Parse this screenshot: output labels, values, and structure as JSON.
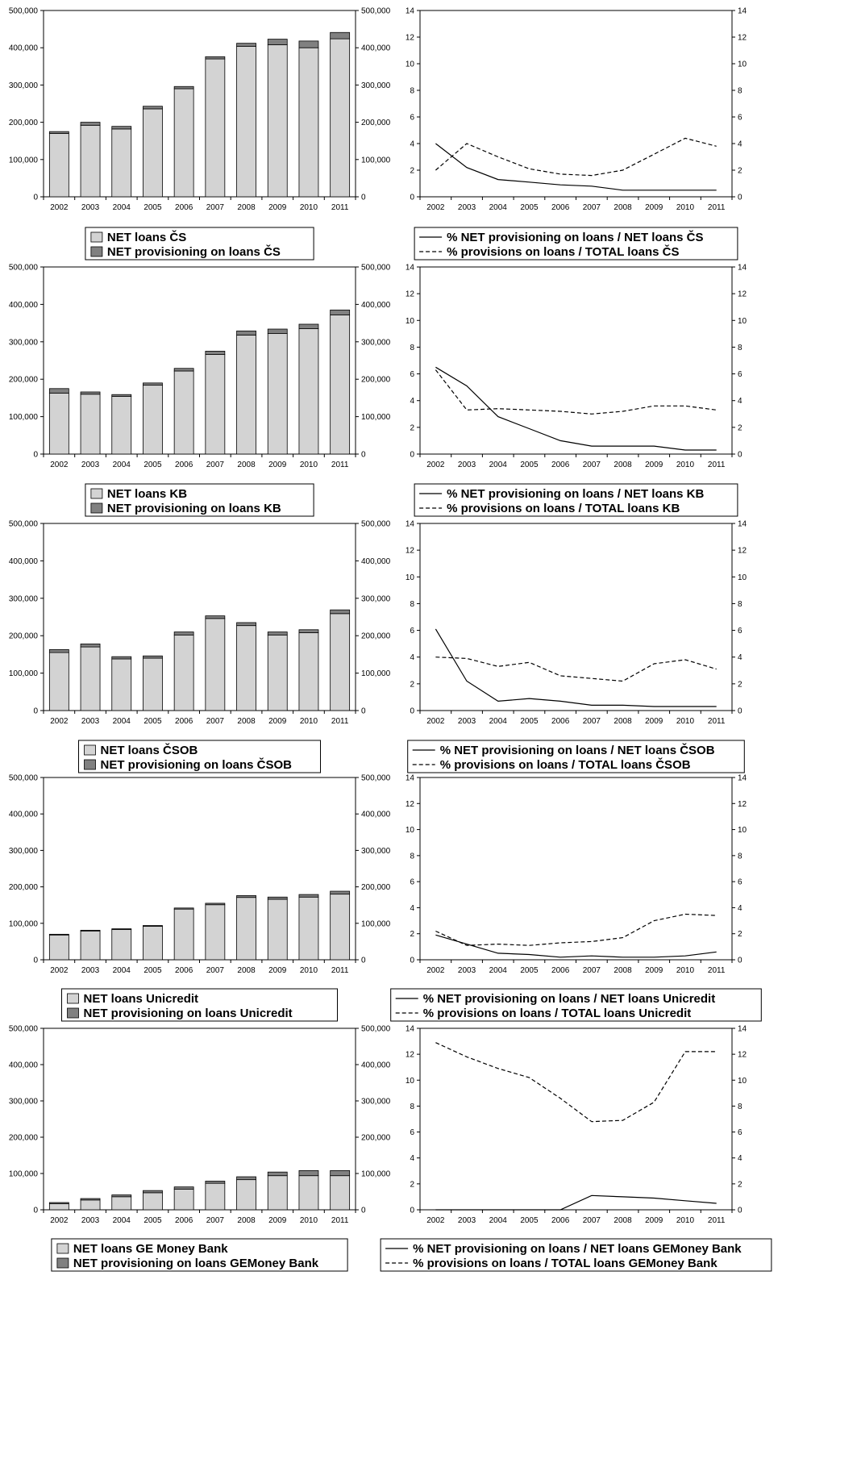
{
  "colors": {
    "loans": "#d3d3d3",
    "provisioning": "#808080",
    "axis": "#000000",
    "background": "#ffffff"
  },
  "years": [
    "2002",
    "2003",
    "2004",
    "2005",
    "2006",
    "2007",
    "2008",
    "2009",
    "2010",
    "2011"
  ],
  "bar_y_ticks": [
    "0",
    "100,000",
    "200,000",
    "300,000",
    "400,000",
    "500,000"
  ],
  "line_y_ticks": [
    "0",
    "2",
    "4",
    "6",
    "8",
    "10",
    "12",
    "14"
  ],
  "chart_data": [
    {
      "type": "bar",
      "stacked": true,
      "bank": "CS",
      "categories": [
        "2002",
        "2003",
        "2004",
        "2005",
        "2006",
        "2007",
        "2008",
        "2009",
        "2010",
        "2011"
      ],
      "ylim": [
        0,
        500000
      ],
      "series": [
        {
          "name": "NET loans ČS",
          "values": [
            170000,
            192000,
            182000,
            236000,
            290000,
            370000,
            404000,
            408000,
            400000,
            424000
          ]
        },
        {
          "name": "NET provisioning on loans ČS",
          "values": [
            5000,
            8000,
            7000,
            7000,
            6000,
            6000,
            8000,
            15000,
            18000,
            17000
          ]
        }
      ]
    },
    {
      "type": "line",
      "bank": "CS",
      "categories": [
        "2002",
        "2003",
        "2004",
        "2005",
        "2006",
        "2007",
        "2008",
        "2009",
        "2010",
        "2011"
      ],
      "ylim": [
        0,
        14
      ],
      "dual_axis": true,
      "series": [
        {
          "name": "% NET provisioning on loans / NET loans ČS",
          "style": "solid",
          "values": [
            4.0,
            2.2,
            1.3,
            1.1,
            0.9,
            0.8,
            0.5,
            0.5,
            0.5,
            0.5
          ]
        },
        {
          "name": "% provisions on loans / TOTAL loans ČS",
          "style": "dashed",
          "values": [
            2.0,
            4.0,
            3.0,
            2.1,
            1.7,
            1.6,
            2.0,
            3.2,
            4.4,
            3.8
          ]
        }
      ]
    },
    {
      "type": "bar",
      "stacked": true,
      "bank": "KB",
      "categories": [
        "2002",
        "2003",
        "2004",
        "2005",
        "2006",
        "2007",
        "2008",
        "2009",
        "2010",
        "2011"
      ],
      "ylim": [
        0,
        500000
      ],
      "series": [
        {
          "name": "NET loans KB",
          "values": [
            163000,
            160000,
            154000,
            184000,
            222000,
            266000,
            318000,
            322000,
            335000,
            372000
          ]
        },
        {
          "name": "NET provisioning on loans KB",
          "values": [
            12000,
            6000,
            5000,
            6000,
            7000,
            9000,
            11000,
            12000,
            12000,
            13000
          ]
        }
      ]
    },
    {
      "type": "line",
      "bank": "KB",
      "categories": [
        "2002",
        "2003",
        "2004",
        "2005",
        "2006",
        "2007",
        "2008",
        "2009",
        "2010",
        "2011"
      ],
      "ylim": [
        0,
        14
      ],
      "dual_axis": true,
      "series": [
        {
          "name": "% NET provisioning on loans / NET loans KB",
          "style": "solid",
          "values": [
            6.5,
            5.1,
            2.8,
            1.9,
            1.0,
            0.6,
            0.6,
            0.6,
            0.3,
            0.3
          ]
        },
        {
          "name": "% provisions on loans / TOTAL loans KB",
          "style": "dashed",
          "values": [
            6.3,
            3.3,
            3.4,
            3.3,
            3.2,
            3.0,
            3.2,
            3.6,
            3.6,
            3.3
          ]
        }
      ]
    },
    {
      "type": "bar",
      "stacked": true,
      "bank": "ČSOB",
      "categories": [
        "2002",
        "2003",
        "2004",
        "2005",
        "2006",
        "2007",
        "2008",
        "2009",
        "2010",
        "2011"
      ],
      "ylim": [
        0,
        500000
      ],
      "series": [
        {
          "name": "NET loans ČSOB",
          "values": [
            155000,
            170000,
            138000,
            140000,
            202000,
            246000,
            227000,
            202000,
            208000,
            259000
          ]
        },
        {
          "name": "NET provisioning on loans ČSOB",
          "values": [
            8000,
            8000,
            6000,
            6000,
            8000,
            7000,
            8000,
            8000,
            8000,
            10000
          ]
        }
      ]
    },
    {
      "type": "line",
      "bank": "ČSOB",
      "categories": [
        "2002",
        "2003",
        "2004",
        "2005",
        "2006",
        "2007",
        "2008",
        "2009",
        "2010",
        "2011"
      ],
      "ylim": [
        0,
        14
      ],
      "dual_axis": true,
      "series": [
        {
          "name": "% NET provisioning on loans / NET loans ČSOB",
          "style": "solid",
          "values": [
            6.1,
            2.2,
            0.7,
            0.9,
            0.7,
            0.4,
            0.4,
            0.3,
            0.3,
            0.3
          ]
        },
        {
          "name": "% provisions on loans / TOTAL loans ČSOB",
          "style": "dashed",
          "values": [
            4.0,
            3.9,
            3.3,
            3.6,
            2.6,
            2.4,
            2.2,
            3.5,
            3.8,
            3.1
          ]
        }
      ]
    },
    {
      "type": "bar",
      "stacked": true,
      "bank": "Unicredit",
      "categories": [
        "2002",
        "2003",
        "2004",
        "2005",
        "2006",
        "2007",
        "2008",
        "2009",
        "2010",
        "2011"
      ],
      "ylim": [
        0,
        500000
      ],
      "series": [
        {
          "name": "NET loans Unicredit",
          "values": [
            68000,
            79000,
            83000,
            92000,
            139000,
            151000,
            171000,
            166000,
            172000,
            180000
          ]
        },
        {
          "name": "NET provisioning on loans Unicredit",
          "values": [
            2000,
            2000,
            2000,
            2000,
            3000,
            4000,
            5000,
            6000,
            7000,
            8000
          ]
        }
      ]
    },
    {
      "type": "line",
      "bank": "Unicredit",
      "categories": [
        "2002",
        "2003",
        "2004",
        "2005",
        "2006",
        "2007",
        "2008",
        "2009",
        "2010",
        "2011"
      ],
      "ylim": [
        0,
        14
      ],
      "dual_axis": true,
      "series": [
        {
          "name": "% NET provisioning on loans / NET loans Unicredit",
          "style": "solid",
          "values": [
            1.9,
            1.2,
            0.5,
            0.4,
            0.2,
            0.3,
            0.2,
            0.2,
            0.3,
            0.6
          ]
        },
        {
          "name": "% provisions on loans / TOTAL loans Unicredit",
          "style": "dashed",
          "values": [
            2.2,
            1.1,
            1.2,
            1.1,
            1.3,
            1.4,
            1.7,
            3.0,
            3.5,
            3.4
          ]
        }
      ]
    },
    {
      "type": "bar",
      "stacked": true,
      "bank": "GE Money Bank",
      "categories": [
        "2002",
        "2003",
        "2004",
        "2005",
        "2006",
        "2007",
        "2008",
        "2009",
        "2010",
        "2011"
      ],
      "ylim": [
        0,
        500000
      ],
      "series": [
        {
          "name": "NET loans GE Money Bank",
          "values": [
            17000,
            27000,
            36000,
            47000,
            57000,
            73000,
            83000,
            94000,
            94000,
            94000
          ]
        },
        {
          "name": "NET provisioning on loans GEMoney Bank",
          "values": [
            3000,
            4000,
            5000,
            6000,
            6000,
            6000,
            8000,
            10000,
            14000,
            14000
          ]
        }
      ]
    },
    {
      "type": "line",
      "bank": "GE Money Bank",
      "categories": [
        "2002",
        "2003",
        "2004",
        "2005",
        "2006",
        "2007",
        "2008",
        "2009",
        "2010",
        "2011"
      ],
      "ylim": [
        0,
        14
      ],
      "dual_axis": true,
      "series": [
        {
          "name": "% NET provisioning on loans / NET loans GEMoney Bank",
          "style": "solid",
          "values": [
            0.0,
            0.0,
            0.0,
            0.0,
            0.0,
            1.1,
            1.0,
            0.9,
            0.7,
            0.5
          ]
        },
        {
          "name": "% provisions on loans / TOTAL loans GEMoney Bank",
          "style": "dashed",
          "values": [
            12.9,
            11.8,
            10.9,
            10.2,
            8.6,
            6.8,
            6.9,
            8.3,
            12.2,
            12.2
          ]
        }
      ]
    }
  ]
}
